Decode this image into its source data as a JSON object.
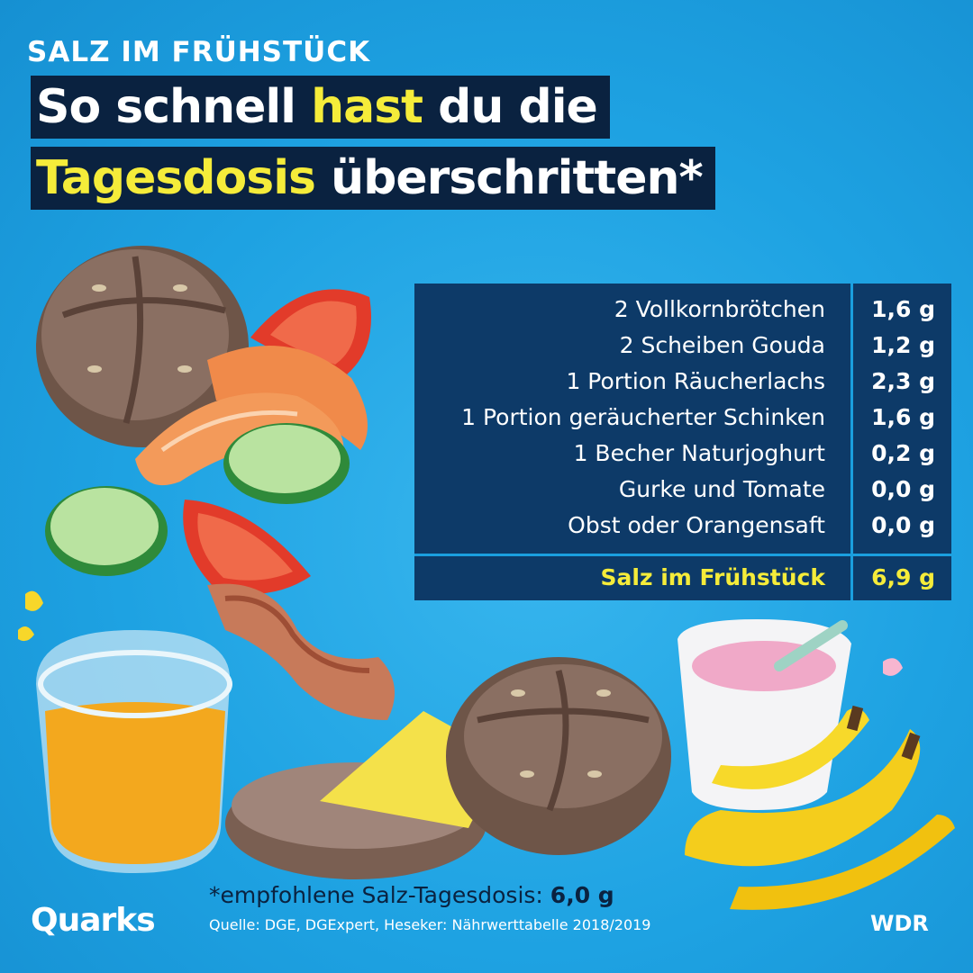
{
  "kicker": "SALZ IM FRÜHSTÜCK",
  "headline": {
    "line1_part1": "So schnell ",
    "line1_highlight": "hast",
    "line1_part2": " du die",
    "line2_highlight": "Tagesdosis",
    "line2_part2": " überschritten*"
  },
  "table": {
    "rows": [
      {
        "item": "2 Vollkornbrötchen",
        "value": "1,6 g"
      },
      {
        "item": "2 Scheiben Gouda",
        "value": "1,2 g"
      },
      {
        "item": "1 Portion Räucherlachs",
        "value": "2,3 g"
      },
      {
        "item": "1 Portion geräucherter Schinken",
        "value": "1,6 g"
      },
      {
        "item": "1 Becher Naturjoghurt",
        "value": "0,2 g"
      },
      {
        "item": "Gurke und Tomate",
        "value": "0,0 g"
      },
      {
        "item": "Obst oder Orangensaft",
        "value": "0,0 g"
      }
    ],
    "total": {
      "item": "Salz im Frühstück",
      "value": "6,9 g"
    }
  },
  "footnote": {
    "text": "*empfohlene Salz-Tagesdosis: ",
    "value": "6,0 g"
  },
  "source": "Quelle: DGE, DGExpert, Heseker: Nährwerttabelle 2018/2019",
  "logos": {
    "left": "Quarks",
    "right": "WDR"
  },
  "colors": {
    "background": "#1ea2e2",
    "navy": "#0a2240",
    "highlight": "#f5ec3a",
    "table_bg": "#0d3a68"
  }
}
